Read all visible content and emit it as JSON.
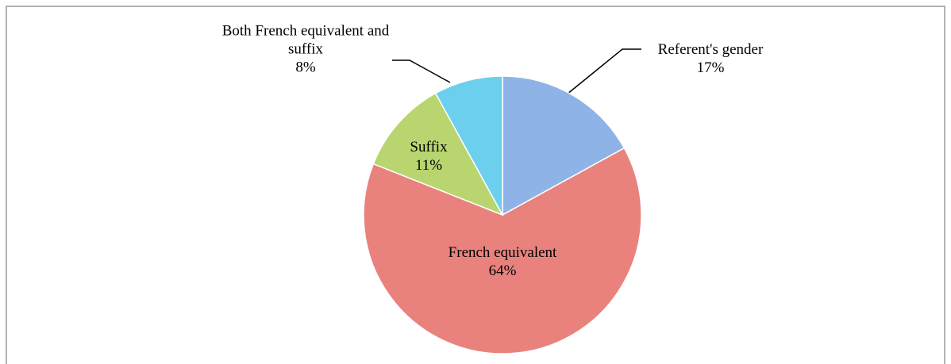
{
  "chart_data": {
    "type": "pie",
    "categories": [
      "Referent's gender",
      "French equivalent",
      "Suffix",
      "Both French equivalent and suffix"
    ],
    "values": [
      17,
      64,
      11,
      8
    ],
    "value_labels": [
      "17%",
      "64%",
      "11%",
      "8%"
    ],
    "colors": [
      "#8eb3e6",
      "#e9827d",
      "#b8d56f",
      "#6ccfee"
    ]
  }
}
